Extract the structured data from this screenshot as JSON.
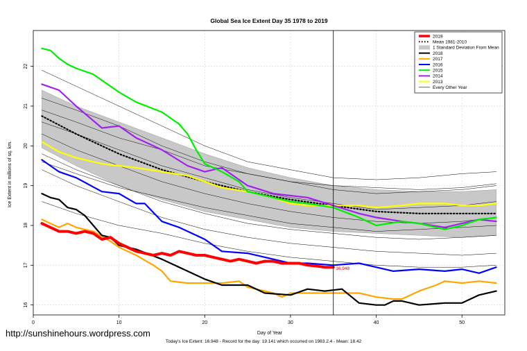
{
  "chart_data": {
    "type": "line",
    "title": "Global Sea Ice Extent Day 35 1978 to 2019",
    "xlabel": "Day of Year",
    "ylabel": "Ice Extent in millions of sq. km.",
    "xlim": [
      0,
      55
    ],
    "ylim": [
      15.75,
      22.9
    ],
    "xticks": [
      0,
      10,
      20,
      30,
      40,
      50
    ],
    "yticks": [
      16,
      17,
      18,
      19,
      20,
      21,
      22
    ],
    "grid": true,
    "legend_position": "top-right",
    "vertical_marker_day": 35,
    "annotation": {
      "text": "16.948",
      "x": 35.2,
      "y": 16.92
    },
    "colors": {
      "2019": "#ff0000",
      "mean": "#000000",
      "band": "#c8c8c8",
      "2018": "#000000",
      "2017": "#ffa500",
      "2016": "#0000ff",
      "2015": "#00ee00",
      "2014": "#a020f0",
      "2013": "#ffff00",
      "other": "#000000"
    },
    "legend": [
      {
        "label": "2019",
        "kind": "thick",
        "color": "#ff0000"
      },
      {
        "label": "Mean 1981-2010",
        "kind": "dotted",
        "color": "#000000"
      },
      {
        "label": "1 Standard Deviation From Mean",
        "kind": "band",
        "color": "#c8c8c8"
      },
      {
        "label": "2018",
        "kind": "line",
        "color": "#000000"
      },
      {
        "label": "2017",
        "kind": "line",
        "color": "#ffa500"
      },
      {
        "label": "2016",
        "kind": "line",
        "color": "#0000ff"
      },
      {
        "label": "2015",
        "kind": "line",
        "color": "#00ee00"
      },
      {
        "label": "2014",
        "kind": "line",
        "color": "#a020f0"
      },
      {
        "label": "2013",
        "kind": "line",
        "color": "#ffff00"
      },
      {
        "label": "Every Other Year",
        "kind": "thin",
        "color": "#000000"
      }
    ],
    "band": {
      "x": [
        1,
        5,
        10,
        15,
        20,
        25,
        30,
        35,
        40,
        45,
        50,
        54
      ],
      "upper": [
        21.4,
        21.0,
        20.6,
        20.2,
        19.8,
        19.45,
        19.2,
        19.0,
        18.9,
        18.85,
        18.85,
        18.9
      ],
      "lower": [
        19.95,
        19.5,
        19.0,
        18.65,
        18.35,
        18.15,
        17.95,
        17.85,
        17.8,
        17.75,
        17.7,
        17.75
      ]
    },
    "series": [
      {
        "name": "Every Other Year",
        "style": "thin",
        "x": [
          1,
          5,
          10,
          15,
          20,
          25,
          30,
          35,
          40,
          45,
          50,
          54
        ],
        "y": [
          21.9,
          21.5,
          21.0,
          20.5,
          20.0,
          19.6,
          19.4,
          19.2,
          19.15,
          19.2,
          19.3,
          19.35
        ]
      },
      {
        "name": "Every Other Year",
        "style": "thin",
        "x": [
          1,
          5,
          10,
          15,
          20,
          25,
          30,
          35,
          40,
          45,
          50,
          54
        ],
        "y": [
          21.2,
          20.9,
          20.5,
          20.0,
          19.6,
          19.3,
          19.1,
          18.9,
          18.8,
          18.85,
          18.9,
          19.0
        ]
      },
      {
        "name": "Every Other Year",
        "style": "thin",
        "x": [
          1,
          5,
          10,
          15,
          20,
          25,
          30,
          35,
          40,
          45,
          50,
          54
        ],
        "y": [
          20.6,
          20.3,
          19.9,
          19.5,
          19.2,
          18.9,
          18.7,
          18.55,
          18.4,
          18.45,
          18.5,
          18.6
        ]
      },
      {
        "name": "Every Other Year",
        "style": "thin",
        "x": [
          1,
          5,
          10,
          15,
          20,
          25,
          30,
          35,
          40,
          45,
          50,
          54
        ],
        "y": [
          20.3,
          19.9,
          19.5,
          19.1,
          18.8,
          18.55,
          18.35,
          18.2,
          18.1,
          18.05,
          18.1,
          18.2
        ]
      },
      {
        "name": "Every Other Year",
        "style": "thin",
        "x": [
          1,
          5,
          10,
          15,
          20,
          25,
          30,
          35,
          40,
          45,
          50,
          54
        ],
        "y": [
          19.8,
          19.4,
          19.0,
          18.6,
          18.3,
          18.05,
          17.9,
          17.8,
          17.7,
          17.65,
          17.7,
          17.75
        ]
      },
      {
        "name": "Every Other Year",
        "style": "thin",
        "x": [
          1,
          5,
          10,
          15,
          20,
          25,
          30,
          35,
          40,
          45,
          50,
          54
        ],
        "y": [
          19.4,
          19.0,
          18.6,
          18.2,
          17.9,
          17.7,
          17.55,
          17.45,
          17.35,
          17.3,
          17.25,
          17.3
        ]
      },
      {
        "name": "Every Other Year",
        "style": "thin",
        "x": [
          1,
          5,
          10,
          15,
          20,
          25,
          30,
          35,
          40,
          45,
          50,
          54
        ],
        "y": [
          18.6,
          18.3,
          18.0,
          17.8,
          17.55,
          17.35,
          17.2,
          17.1,
          17.0,
          16.95,
          16.95,
          17.0
        ]
      },
      {
        "name": "Every Other Year",
        "style": "thin",
        "x": [
          1,
          5,
          10,
          15,
          20,
          25,
          30,
          35,
          40,
          45,
          50,
          54
        ],
        "y": [
          20.9,
          20.6,
          20.2,
          19.9,
          19.5,
          19.3,
          19.1,
          19.0,
          18.95,
          18.9,
          18.95,
          19.05
        ]
      },
      {
        "name": "Every Other Year",
        "style": "thin",
        "x": [
          1,
          5,
          10,
          15,
          20,
          25,
          30,
          35,
          40,
          45,
          50,
          54
        ],
        "y": [
          19.6,
          19.3,
          18.95,
          18.7,
          18.45,
          18.25,
          18.05,
          17.95,
          17.85,
          17.9,
          17.95,
          18.0
        ]
      },
      {
        "name": "Mean 1981-2010",
        "style": "dotted",
        "x": [
          1,
          5,
          10,
          15,
          20,
          25,
          30,
          35,
          40,
          45,
          50,
          54
        ],
        "y": [
          20.75,
          20.3,
          19.8,
          19.4,
          19.1,
          18.85,
          18.65,
          18.5,
          18.35,
          18.3,
          18.3,
          18.3
        ]
      },
      {
        "name": "2013",
        "style": "line",
        "x": [
          1,
          3,
          5,
          8,
          10,
          12,
          15,
          18,
          20,
          22,
          25,
          28,
          30,
          32,
          35,
          38,
          40,
          43,
          45,
          48,
          50,
          52,
          54
        ],
        "y": [
          20.1,
          19.85,
          19.7,
          19.55,
          19.5,
          19.45,
          19.35,
          19.25,
          19.1,
          18.95,
          18.85,
          18.7,
          18.55,
          18.5,
          18.5,
          18.5,
          18.45,
          18.5,
          18.55,
          18.55,
          18.5,
          18.5,
          18.55
        ]
      },
      {
        "name": "2014",
        "style": "line",
        "x": [
          1,
          3,
          5,
          8,
          10,
          12,
          15,
          18,
          20,
          22,
          25,
          28,
          30,
          32,
          35,
          38,
          40,
          43,
          45,
          48,
          50,
          52,
          54
        ],
        "y": [
          21.55,
          21.4,
          21.0,
          20.45,
          20.5,
          20.2,
          19.9,
          19.5,
          19.35,
          19.45,
          19.0,
          18.8,
          18.75,
          18.7,
          18.5,
          18.3,
          18.2,
          18.1,
          18.05,
          17.95,
          18.05,
          18.15,
          18.1
        ]
      },
      {
        "name": "2015",
        "style": "line",
        "x": [
          1,
          2,
          3,
          4,
          5,
          7,
          9,
          10,
          12,
          15,
          17,
          18,
          19,
          20,
          22,
          24,
          25,
          28,
          30,
          32,
          35,
          38,
          40,
          43,
          45,
          48,
          50,
          52,
          54
        ],
        "y": [
          22.45,
          22.4,
          22.2,
          22.05,
          21.95,
          21.8,
          21.5,
          21.35,
          21.1,
          20.85,
          20.55,
          20.3,
          19.9,
          19.55,
          19.35,
          19.1,
          18.85,
          18.7,
          18.6,
          18.55,
          18.45,
          18.2,
          18.0,
          18.1,
          18.05,
          17.9,
          18.0,
          18.15,
          18.2
        ]
      },
      {
        "name": "2016",
        "style": "line",
        "x": [
          1,
          3,
          5,
          8,
          10,
          12,
          13,
          15,
          17,
          20,
          22,
          25,
          28,
          30,
          32,
          35,
          38,
          40,
          42,
          45,
          48,
          50,
          52,
          54
        ],
        "y": [
          19.65,
          19.35,
          19.2,
          18.85,
          18.8,
          18.55,
          18.55,
          18.1,
          17.95,
          17.65,
          17.35,
          17.3,
          17.15,
          17.05,
          17.05,
          17.0,
          17.05,
          16.95,
          16.85,
          16.9,
          16.85,
          16.9,
          16.8,
          16.95
        ]
      },
      {
        "name": "2017",
        "style": "line",
        "x": [
          1,
          2,
          3,
          4,
          5,
          7,
          9,
          10,
          12,
          14,
          15,
          16,
          18,
          20,
          22,
          24,
          25,
          28,
          29,
          30,
          32,
          35,
          38,
          40,
          42,
          43,
          45,
          47,
          48,
          50,
          52,
          54
        ],
        "y": [
          18.15,
          18.05,
          17.95,
          18.05,
          17.95,
          17.85,
          17.6,
          17.45,
          17.25,
          17.0,
          16.85,
          16.6,
          16.55,
          16.55,
          16.55,
          16.6,
          16.45,
          16.3,
          16.2,
          16.3,
          16.3,
          16.3,
          16.3,
          16.2,
          16.15,
          16.15,
          16.35,
          16.5,
          16.6,
          16.55,
          16.6,
          16.55
        ]
      },
      {
        "name": "2018",
        "style": "line",
        "x": [
          1,
          2,
          3,
          4,
          5,
          6,
          7,
          8,
          9,
          10,
          12,
          15,
          18,
          20,
          22,
          25,
          27,
          30,
          32,
          34,
          36,
          38,
          40,
          41,
          42,
          43,
          45,
          48,
          50,
          52,
          54
        ],
        "y": [
          18.8,
          18.7,
          18.65,
          18.45,
          18.4,
          18.25,
          18.0,
          17.75,
          17.7,
          17.5,
          17.4,
          17.15,
          16.85,
          16.65,
          16.5,
          16.5,
          16.3,
          16.25,
          16.4,
          16.35,
          16.4,
          16.05,
          16.0,
          16.0,
          16.1,
          16.1,
          16.0,
          16.05,
          16.05,
          16.25,
          16.35
        ]
      },
      {
        "name": "2019",
        "style": "thick",
        "x": [
          1,
          2,
          3,
          4,
          5,
          6,
          7,
          8,
          9,
          10,
          11,
          12,
          13,
          14,
          15,
          16,
          17,
          18,
          19,
          20,
          21,
          22,
          23,
          24,
          25,
          26,
          27,
          28,
          29,
          30,
          31,
          32,
          33,
          34,
          35
        ],
        "y": [
          18.05,
          17.95,
          17.85,
          17.85,
          17.8,
          17.85,
          17.8,
          17.65,
          17.7,
          17.55,
          17.45,
          17.35,
          17.3,
          17.25,
          17.3,
          17.25,
          17.35,
          17.3,
          17.25,
          17.25,
          17.2,
          17.15,
          17.1,
          17.15,
          17.1,
          17.05,
          17.1,
          17.1,
          17.05,
          17.05,
          17.05,
          17.0,
          16.98,
          16.95,
          16.948
        ]
      }
    ]
  },
  "watermark": "http://sunshinehours.wordpress.com",
  "footer": "Today's Ice Extent: 16.948  - Record for the day: 19.141 which occurred on 1983.2.4  - Mean: 18.42"
}
